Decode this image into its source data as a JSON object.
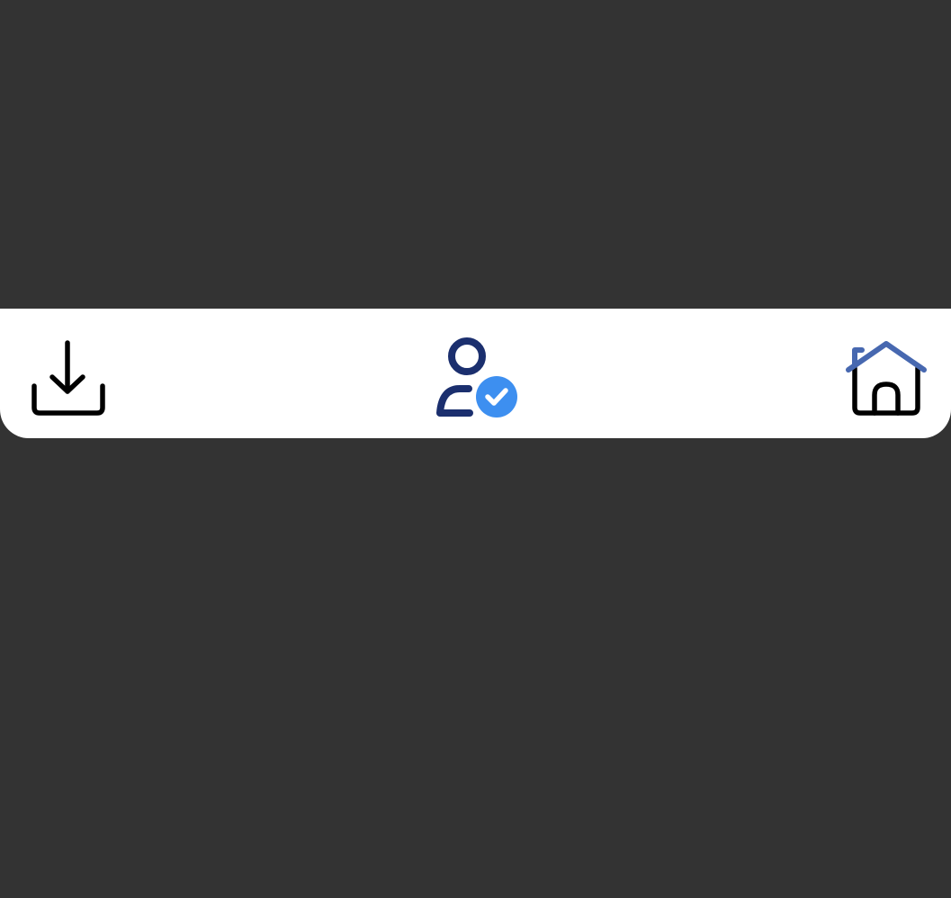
{
  "screen": {
    "background_color": "#333333"
  },
  "bottom_bar": {
    "background_color": "#ffffff",
    "items": [
      {
        "id": "download",
        "icon": "download-icon",
        "color": "#000000"
      },
      {
        "id": "profile",
        "icon": "user-verified-icon",
        "color": "#1b2f6e",
        "badge_color": "#3d8ff0"
      },
      {
        "id": "home",
        "icon": "home-icon",
        "color": "#000000",
        "roof_color": "#4768b0"
      }
    ]
  }
}
